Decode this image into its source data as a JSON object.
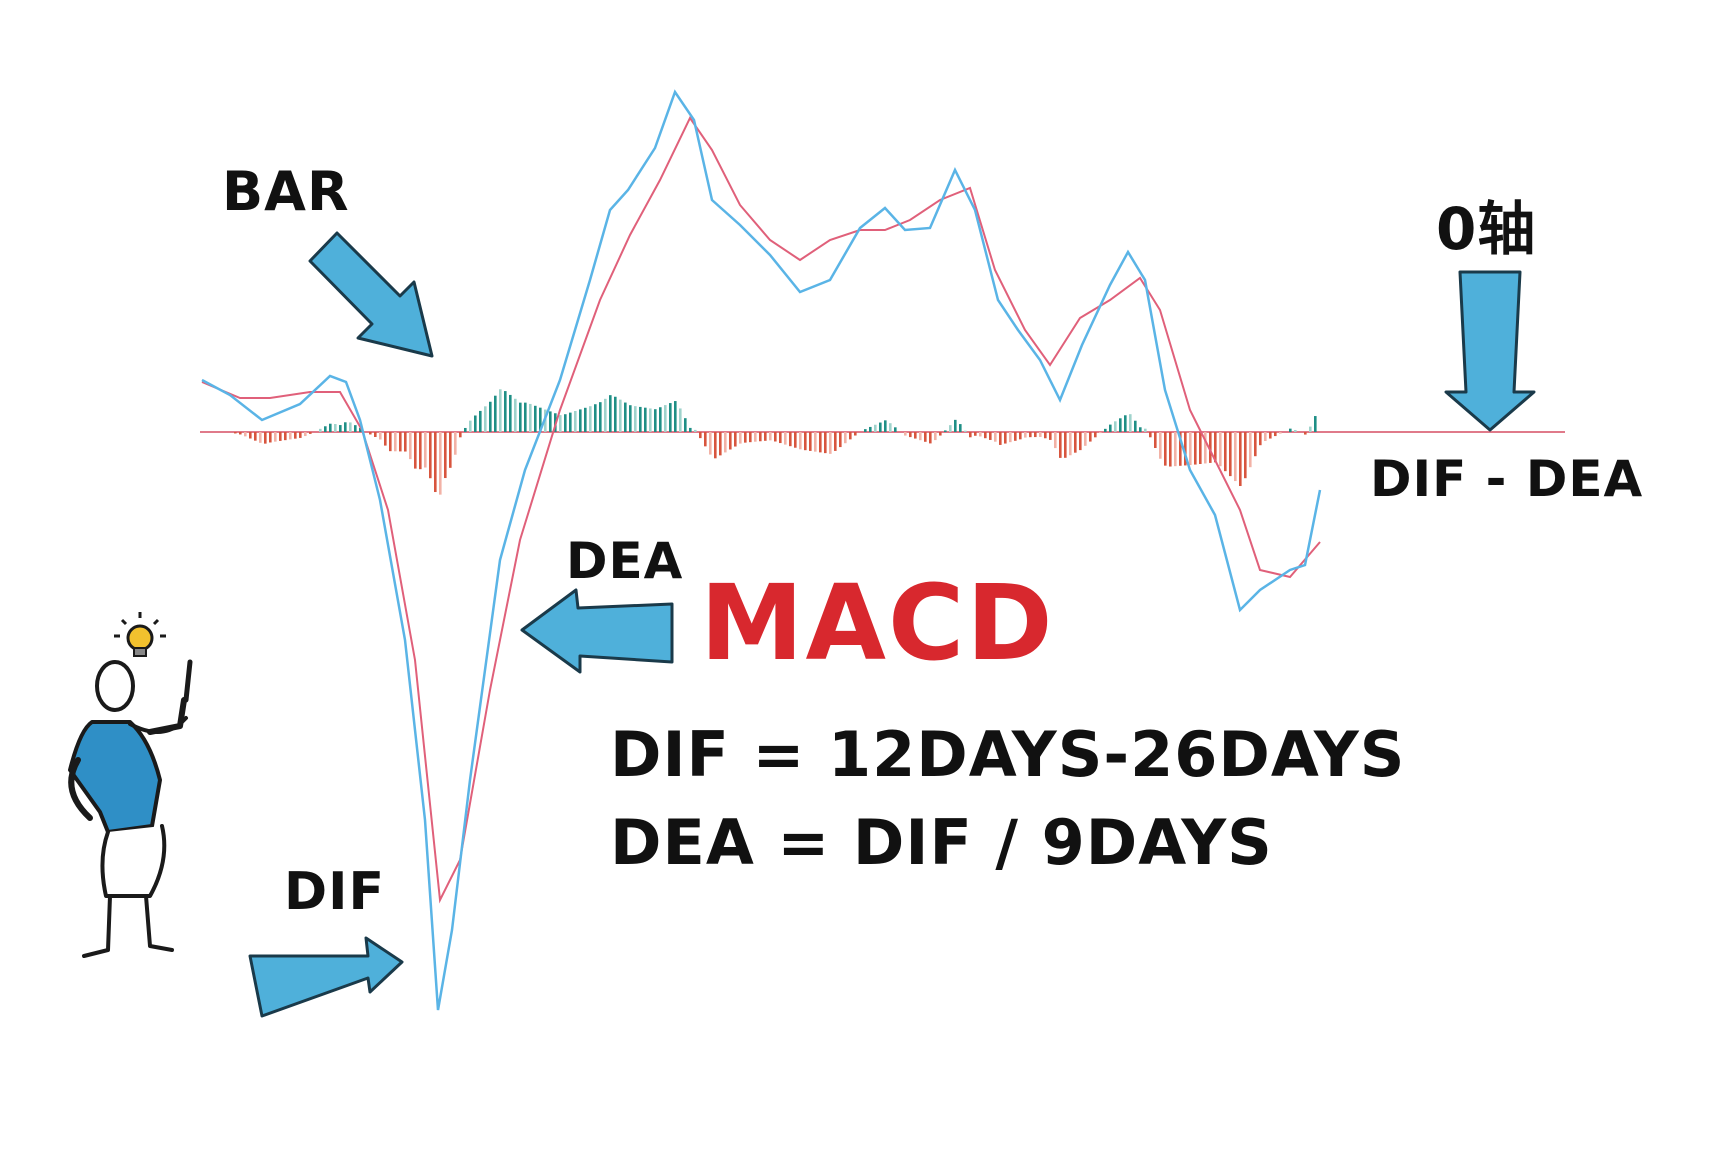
{
  "title": "MACD",
  "labels": {
    "bar": "BAR",
    "zero_axis": "0轴",
    "dif_dea": "DIF - DEA",
    "dea": "DEA",
    "dif": "DIF"
  },
  "formulas": {
    "line1": "DIF = 12DAYS-26DAYS",
    "line2": "DEA = DIF / 9DAYS"
  },
  "colors": {
    "dif_line": "#5ab4e6",
    "dea_line": "#e0607a",
    "bar_positive": "#1f8f86",
    "bar_positive_light": "#9fd3cc",
    "bar_negative": "#d8553e",
    "bar_negative_light": "#f2b2a6",
    "zero_axis": "#e07a8a",
    "arrow_fill": "#4fb0da",
    "arrow_stroke": "#1a3a4a",
    "title_color": "#d8282e"
  },
  "icons": [
    "lightbulb-icon",
    "thinking-person-figure"
  ]
}
